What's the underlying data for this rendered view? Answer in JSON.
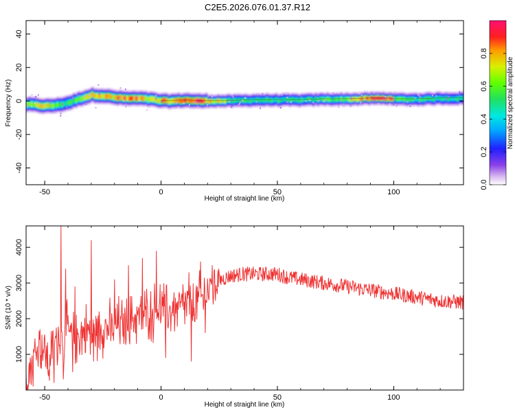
{
  "title": "C2E5.2026.076.01.37.R12",
  "chart_data": [
    {
      "type": "heatmap",
      "name": "spectrogram",
      "xlabel": "Height of straight line (km)",
      "ylabel": "Frequency (Hz)",
      "xlim": [
        -58,
        130
      ],
      "ylim": [
        -50,
        48
      ],
      "xticks": [
        -50,
        0,
        50,
        100
      ],
      "yticks": [
        -40,
        -20,
        0,
        20,
        40
      ],
      "colorbar": {
        "label": "Normalized spectral amplitude",
        "range": [
          0,
          1
        ],
        "ticks": [
          0.0,
          0.2,
          0.4,
          0.6,
          0.8
        ]
      },
      "ridge": [
        {
          "x": -58,
          "f": -2,
          "a": 0.6
        },
        {
          "x": -50,
          "f": -3,
          "a": 0.75
        },
        {
          "x": -45,
          "f": -2.5,
          "a": 0.55
        },
        {
          "x": -40,
          "f": -1,
          "a": 0.5
        },
        {
          "x": -35,
          "f": 1.5,
          "a": 0.6
        },
        {
          "x": -30,
          "f": 3.5,
          "a": 0.8
        },
        {
          "x": -25,
          "f": 3,
          "a": 0.75
        },
        {
          "x": -20,
          "f": 2,
          "a": 0.8
        },
        {
          "x": -15,
          "f": 1.5,
          "a": 0.85
        },
        {
          "x": -10,
          "f": 1.5,
          "a": 0.8
        },
        {
          "x": -5,
          "f": 1,
          "a": 0.75
        },
        {
          "x": 0,
          "f": 0,
          "a": 0.8
        },
        {
          "x": 5,
          "f": 0,
          "a": 0.75
        },
        {
          "x": 10,
          "f": 0.5,
          "a": 0.85
        },
        {
          "x": 15,
          "f": 0,
          "a": 0.95
        },
        {
          "x": 20,
          "f": 0,
          "a": 0.8
        },
        {
          "x": 25,
          "f": 0,
          "a": 0.7
        },
        {
          "x": 30,
          "f": 0,
          "a": 0.55
        },
        {
          "x": 40,
          "f": 0.5,
          "a": 0.5
        },
        {
          "x": 50,
          "f": 0.5,
          "a": 0.5
        },
        {
          "x": 60,
          "f": 0.5,
          "a": 0.52
        },
        {
          "x": 70,
          "f": 1,
          "a": 0.55
        },
        {
          "x": 80,
          "f": 1,
          "a": 0.65
        },
        {
          "x": 90,
          "f": 1.5,
          "a": 0.9
        },
        {
          "x": 95,
          "f": 1.5,
          "a": 0.95
        },
        {
          "x": 99,
          "f": 1.5,
          "a": 0.9
        },
        {
          "x": 100,
          "f": 1,
          "a": 0.55
        },
        {
          "x": 110,
          "f": 1,
          "a": 0.5
        },
        {
          "x": 120,
          "f": 1.5,
          "a": 0.5
        },
        {
          "x": 130,
          "f": 1.5,
          "a": 0.5
        }
      ]
    },
    {
      "type": "line",
      "name": "snr",
      "xlabel": "Height of straight line (km)",
      "ylabel": "SNR (10 * v/v)",
      "xlim": [
        -58,
        130
      ],
      "ylim": [
        0,
        4600
      ],
      "xticks": [
        -50,
        0,
        50,
        100
      ],
      "yticks": [
        1000,
        2000,
        3000,
        4000
      ],
      "color": "#ee3333",
      "series": [
        {
          "x": -58,
          "y": 400
        },
        {
          "x": -55,
          "y": 900
        },
        {
          "x": -52,
          "y": 1300
        },
        {
          "x": -50,
          "y": 1100
        },
        {
          "x": -48,
          "y": 700
        },
        {
          "x": -46,
          "y": 1300
        },
        {
          "x": -44,
          "y": 1500
        },
        {
          "x": -42,
          "y": 1400
        },
        {
          "x": -40,
          "y": 1700
        },
        {
          "x": -38,
          "y": 1400
        },
        {
          "x": -36,
          "y": 1500
        },
        {
          "x": -34,
          "y": 1600
        },
        {
          "x": -32,
          "y": 1700
        },
        {
          "x": -30,
          "y": 1500
        },
        {
          "x": -28,
          "y": 1600
        },
        {
          "x": -26,
          "y": 1700
        },
        {
          "x": -24,
          "y": 1800
        },
        {
          "x": -22,
          "y": 1700
        },
        {
          "x": -20,
          "y": 1700
        },
        {
          "x": -18,
          "y": 1900
        },
        {
          "x": -16,
          "y": 1800
        },
        {
          "x": -14,
          "y": 1900
        },
        {
          "x": -12,
          "y": 2000
        },
        {
          "x": -10,
          "y": 2100
        },
        {
          "x": -8,
          "y": 2000
        },
        {
          "x": -6,
          "y": 2200
        },
        {
          "x": -4,
          "y": 2100
        },
        {
          "x": -2,
          "y": 2300
        },
        {
          "x": 0,
          "y": 2300
        },
        {
          "x": 2,
          "y": 2200
        },
        {
          "x": 4,
          "y": 2200
        },
        {
          "x": 6,
          "y": 2300
        },
        {
          "x": 8,
          "y": 2300
        },
        {
          "x": 10,
          "y": 2400
        },
        {
          "x": 12,
          "y": 2300
        },
        {
          "x": 14,
          "y": 2300
        },
        {
          "x": 16,
          "y": 2500
        },
        {
          "x": 18,
          "y": 2600
        },
        {
          "x": 20,
          "y": 2800
        },
        {
          "x": 22,
          "y": 2900
        },
        {
          "x": 24,
          "y": 3000
        },
        {
          "x": 26,
          "y": 3100
        },
        {
          "x": 28,
          "y": 3150
        },
        {
          "x": 30,
          "y": 3200
        },
        {
          "x": 35,
          "y": 3250
        },
        {
          "x": 40,
          "y": 3250
        },
        {
          "x": 45,
          "y": 3250
        },
        {
          "x": 50,
          "y": 3250
        },
        {
          "x": 55,
          "y": 3150
        },
        {
          "x": 60,
          "y": 3100
        },
        {
          "x": 65,
          "y": 3050
        },
        {
          "x": 70,
          "y": 3000
        },
        {
          "x": 75,
          "y": 2950
        },
        {
          "x": 80,
          "y": 2900
        },
        {
          "x": 85,
          "y": 2850
        },
        {
          "x": 90,
          "y": 2800
        },
        {
          "x": 95,
          "y": 2750
        },
        {
          "x": 100,
          "y": 2700
        },
        {
          "x": 105,
          "y": 2650
        },
        {
          "x": 110,
          "y": 2600
        },
        {
          "x": 115,
          "y": 2550
        },
        {
          "x": 120,
          "y": 2500
        },
        {
          "x": 125,
          "y": 2480
        },
        {
          "x": 130,
          "y": 2450
        }
      ],
      "spikes": [
        {
          "x": -55,
          "y": 100
        },
        {
          "x": -52,
          "y": 1700
        },
        {
          "x": -46,
          "y": 200
        },
        {
          "x": -43,
          "y": 4600
        },
        {
          "x": -42,
          "y": 300
        },
        {
          "x": -41,
          "y": 3400
        },
        {
          "x": -38,
          "y": 500
        },
        {
          "x": -37,
          "y": 2900
        },
        {
          "x": -30,
          "y": 4200
        },
        {
          "x": -29,
          "y": 800
        },
        {
          "x": -20,
          "y": 3100
        },
        {
          "x": -14,
          "y": 3500
        },
        {
          "x": -8,
          "y": 3700
        },
        {
          "x": -2,
          "y": 3900
        },
        {
          "x": 2,
          "y": 900
        },
        {
          "x": 12,
          "y": 3300
        },
        {
          "x": 13,
          "y": 800
        },
        {
          "x": 17,
          "y": 3600
        },
        {
          "x": 19,
          "y": 1600
        },
        {
          "x": 22,
          "y": 3500
        }
      ]
    }
  ]
}
